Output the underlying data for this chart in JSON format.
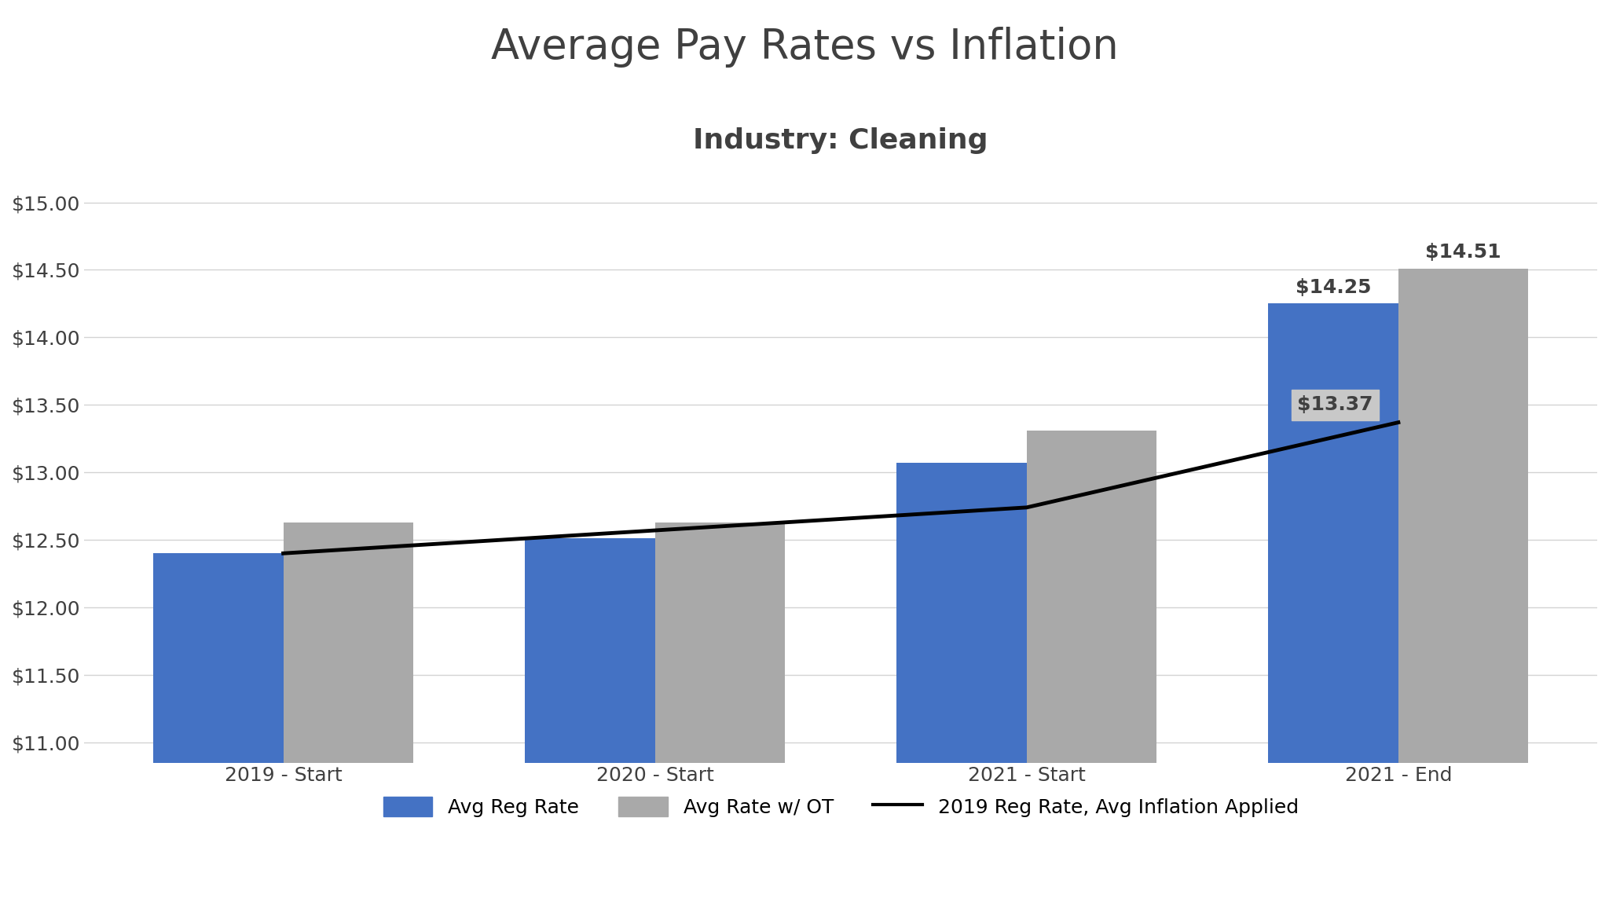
{
  "title": "Average Pay Rates vs Inflation",
  "subtitle": "Industry: Cleaning",
  "categories": [
    "2019 - Start",
    "2020 - Start",
    "2021 - Start",
    "2021 - End"
  ],
  "avg_reg_rate": [
    12.4,
    12.51,
    13.07,
    14.25
  ],
  "avg_rate_wot": [
    12.63,
    12.63,
    13.31,
    14.51
  ],
  "inflation_line": [
    12.4,
    12.57,
    12.74,
    13.37
  ],
  "bar_color_blue": "#4472C4",
  "bar_color_gray": "#A9A9A9",
  "line_color": "#000000",
  "bg_color": "#FFFFFF",
  "grid_color": "#D3D3D3",
  "title_color": "#404040",
  "subtitle_color": "#404040",
  "ylabel_ticks": [
    11.0,
    11.5,
    12.0,
    12.5,
    13.0,
    13.5,
    14.0,
    14.5,
    15.0
  ],
  "ylim": [
    10.85,
    15.3
  ],
  "legend_labels": [
    "Avg Reg Rate",
    "Avg Rate w/ OT",
    "2019 Reg Rate, Avg Inflation Applied"
  ],
  "title_fontsize": 38,
  "subtitle_fontsize": 26,
  "tick_fontsize": 18,
  "annotation_fontsize": 18
}
